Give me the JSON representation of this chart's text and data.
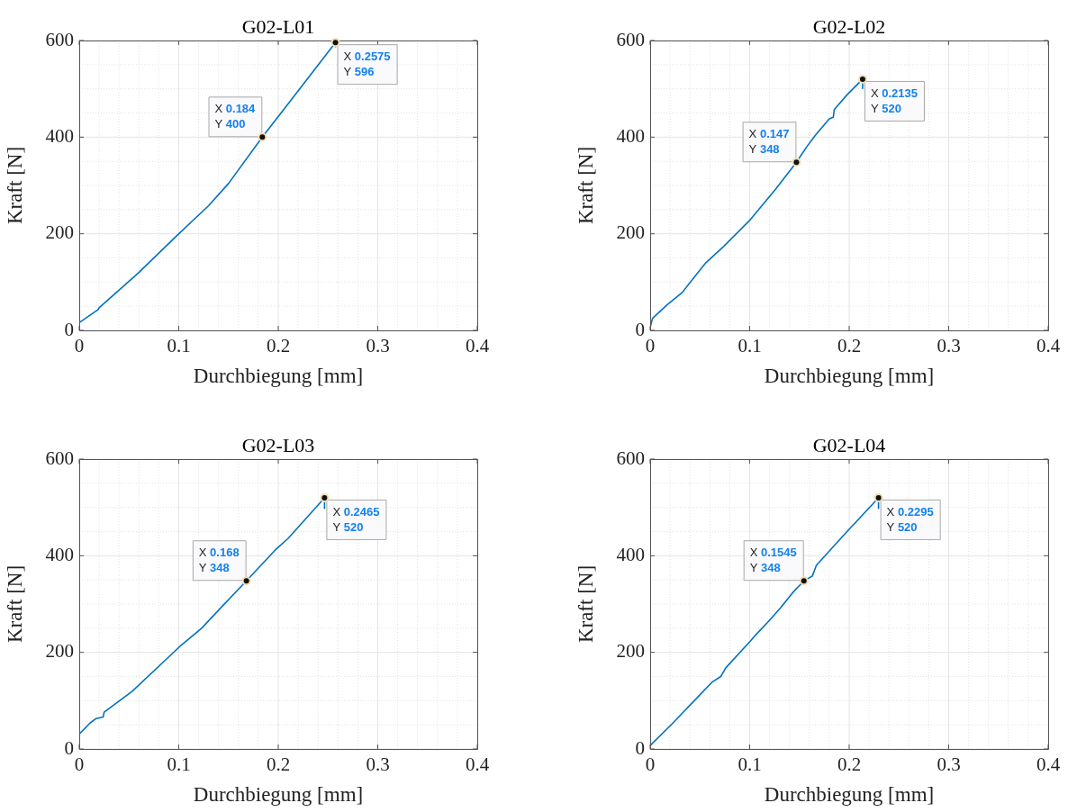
{
  "chart_data": [
    {
      "type": "line",
      "title": "G02-L01",
      "xlabel": "Durchbiegung [mm]",
      "ylabel": "Kraft [N]",
      "color": "#0072bd",
      "x": [
        0,
        0.019,
        0.02,
        0.059,
        0.098,
        0.13,
        0.15,
        0.184,
        0.21,
        0.2575,
        0.2575
      ],
      "values": [
        16,
        43,
        47,
        118,
        196,
        258,
        304,
        400,
        469,
        596,
        587
      ],
      "xlim": [
        0,
        0.4
      ],
      "xticks": [
        0,
        0.1,
        0.2,
        0.3,
        0.4
      ],
      "ylim": [
        0,
        600
      ],
      "yticks": [
        0,
        200,
        400,
        600
      ],
      "grid": true,
      "annotations": [
        {
          "text": "X 0.184\nY 400",
          "x": 0.184,
          "y": 400
        },
        {
          "text": "X 0.2575\nY 596",
          "x": 0.2575,
          "y": 596
        }
      ]
    },
    {
      "type": "line",
      "title": "G02-L02",
      "xlabel": "Durchbiegung [mm]",
      "ylabel": "Kraft [N]",
      "color": "#0072bd",
      "x": [
        0,
        0.0024,
        0.017,
        0.032,
        0.056,
        0.074,
        0.101,
        0.126,
        0.147,
        0.157,
        0.166,
        0.18,
        0.184,
        0.185,
        0.198,
        0.2135,
        0.2135
      ],
      "values": [
        6,
        25,
        53,
        78,
        140,
        174,
        230,
        292,
        348,
        379,
        404,
        438,
        441,
        457,
        488,
        520,
        501
      ],
      "xlim": [
        0,
        0.4
      ],
      "xticks": [
        0,
        0.1,
        0.2,
        0.3,
        0.4
      ],
      "ylim": [
        0,
        600
      ],
      "yticks": [
        0,
        200,
        400,
        600
      ],
      "grid": true,
      "annotations": [
        {
          "text": "X 0.147\nY 348",
          "x": 0.147,
          "y": 348
        },
        {
          "text": "X 0.2135\nY 520",
          "x": 0.2135,
          "y": 520
        }
      ]
    },
    {
      "type": "line",
      "title": "G02-L03",
      "xlabel": "Durchbiegung [mm]",
      "ylabel": "Kraft [N]",
      "color": "#0072bd",
      "x": [
        0,
        0.011,
        0.017,
        0.024,
        0.025,
        0.053,
        0.101,
        0.123,
        0.144,
        0.168,
        0.198,
        0.21,
        0.2465,
        0.2465
      ],
      "values": [
        31,
        54,
        63,
        66,
        76,
        119,
        212,
        250,
        296,
        348,
        414,
        436,
        520,
        498
      ],
      "xlim": [
        0,
        0.4
      ],
      "xticks": [
        0,
        0.1,
        0.2,
        0.3,
        0.4
      ],
      "ylim": [
        0,
        600
      ],
      "yticks": [
        0,
        200,
        400,
        600
      ],
      "grid": true,
      "annotations": [
        {
          "text": "X 0.168\nY 348",
          "x": 0.168,
          "y": 348
        },
        {
          "text": "X 0.2465\nY 520",
          "x": 0.2465,
          "y": 520
        }
      ]
    },
    {
      "type": "line",
      "title": "G02-L04",
      "xlabel": "Durchbiegung [mm]",
      "ylabel": "Kraft [N]",
      "color": "#0072bd",
      "x": [
        0,
        0.02,
        0.023,
        0.062,
        0.071,
        0.076,
        0.101,
        0.106,
        0.119,
        0.131,
        0.143,
        0.1545,
        0.163,
        0.167,
        0.197,
        0.2295,
        0.2295
      ],
      "values": [
        7,
        48,
        54,
        138,
        150,
        168,
        224,
        236,
        264,
        292,
        323,
        348,
        358,
        380,
        448,
        520,
        498
      ],
      "xlim": [
        0,
        0.4
      ],
      "xticks": [
        0,
        0.1,
        0.2,
        0.3,
        0.4
      ],
      "ylim": [
        0,
        600
      ],
      "yticks": [
        0,
        200,
        400,
        600
      ],
      "grid": true,
      "annotations": [
        {
          "text": "X 0.1545\nY 348",
          "x": 0.1545,
          "y": 348
        },
        {
          "text": "X 0.2295\nY 520",
          "x": 0.2295,
          "y": 520
        }
      ]
    }
  ]
}
